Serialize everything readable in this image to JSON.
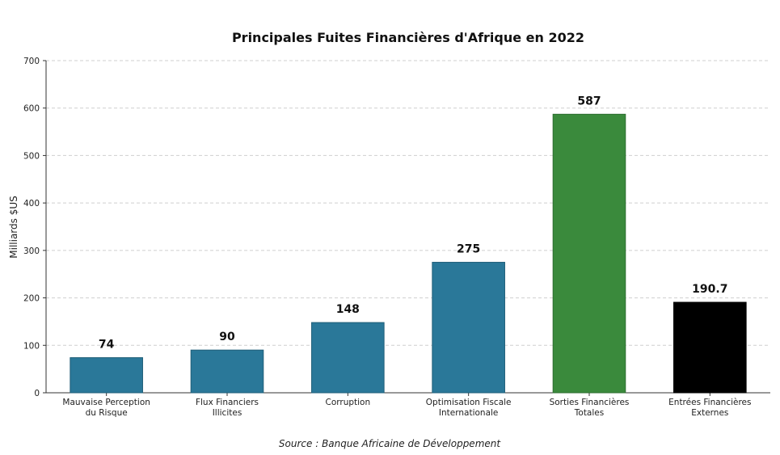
{
  "chart_data": {
    "type": "bar",
    "title": "Principales Fuites Financières d'Afrique en 2022",
    "xlabel": "",
    "ylabel": "Milliards $US",
    "ylim": [
      0,
      700
    ],
    "yticks": [
      0,
      100,
      200,
      300,
      400,
      500,
      600,
      700
    ],
    "grid": true,
    "categories": [
      [
        "Mauvaise Perception",
        "du Risque"
      ],
      [
        "Flux Financiers",
        "Illicites"
      ],
      [
        "Corruption"
      ],
      [
        "Optimisation Fiscale",
        "Internationale"
      ],
      [
        "Sorties Financières",
        "Totales"
      ],
      [
        "Entrées Financières",
        "Externes"
      ]
    ],
    "values": [
      74,
      90,
      148,
      275,
      587,
      190.7
    ],
    "value_labels": [
      "74",
      "90",
      "148",
      "275",
      "587",
      "190.7"
    ],
    "colors": [
      "#2a7899",
      "#2a7899",
      "#2a7899",
      "#2a7899",
      "#3a8a3c",
      "#000000"
    ],
    "source": "Source : Banque Africaine de Développement"
  }
}
